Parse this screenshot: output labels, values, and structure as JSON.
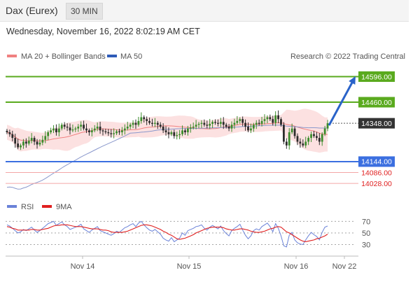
{
  "header": {
    "title": "Dax (Eurex)",
    "timeframe": "30 MIN"
  },
  "timestamp": "Wednesday, November 16, 2022 8:02:19 AM CET",
  "legend": {
    "ma20": "MA 20 + Bollinger Bands",
    "ma50": "MA 50",
    "credit": "Research © 2022 Trading Central"
  },
  "colors": {
    "resistance": "#5aaa1e",
    "support": "#3b6fe0",
    "secondary_support": "#e02020",
    "arrow": "#2a63c9",
    "candle_up": "#3c8c2c",
    "candle_down": "#2b2b2b",
    "bollinger_fill": "#fbd7d7",
    "ma20": "#f08080",
    "ma50": "#8a98cc",
    "rsi": "#6a82d8",
    "rsi_ma": "#e02020"
  },
  "chart_data": [
    {
      "type": "candlestick",
      "title": "Dax (Eurex)",
      "timeframe": "30 MIN",
      "x_ticks": [
        "Nov 14",
        "Nov 15",
        "Nov 16",
        "Nov 22"
      ],
      "ylim": [
        13980,
        14650
      ],
      "current_price": 14348.0,
      "levels": [
        {
          "value": 14596.0,
          "label": "14596.00",
          "kind": "target"
        },
        {
          "value": 14460.0,
          "label": "14460.00",
          "kind": "resistance"
        },
        {
          "value": 14348.0,
          "label": "14348.00",
          "kind": "current"
        },
        {
          "value": 14144.0,
          "label": "14144.00",
          "kind": "support"
        },
        {
          "value": 14086.0,
          "label": "14086.00",
          "kind": "support2"
        },
        {
          "value": 14028.0,
          "label": "14028.00",
          "kind": "support3"
        }
      ],
      "closes": [
        14300,
        14290,
        14270,
        14240,
        14220,
        14230,
        14250,
        14240,
        14255,
        14270,
        14250,
        14235,
        14245,
        14260,
        14280,
        14300,
        14310,
        14320,
        14300,
        14320,
        14340,
        14330,
        14325,
        14310,
        14315,
        14320,
        14330,
        14340,
        14320,
        14310,
        14300,
        14310,
        14320,
        14330,
        14310,
        14305,
        14300,
        14295,
        14290,
        14295,
        14305,
        14300,
        14310,
        14320,
        14330,
        14340,
        14350,
        14340,
        14360,
        14380,
        14370,
        14360,
        14350,
        14345,
        14350,
        14340,
        14330,
        14310,
        14300,
        14290,
        14300,
        14280,
        14285,
        14290,
        14310,
        14300,
        14320,
        14325,
        14330,
        14340,
        14345,
        14350,
        14340,
        14335,
        14345,
        14355,
        14350,
        14345,
        14355,
        14340,
        14330,
        14320,
        14340,
        14350,
        14360,
        14370,
        14350,
        14330,
        14310,
        14320,
        14340,
        14350,
        14345,
        14360,
        14370,
        14380,
        14370,
        14350,
        14390,
        14370,
        14340,
        14250,
        14230,
        14300,
        14320,
        14280,
        14250,
        14240,
        14230,
        14250,
        14270,
        14290,
        14280,
        14270,
        14250,
        14290,
        14320,
        14348
      ],
      "series": [
        {
          "name": "MA 20 + Bollinger Bands"
        },
        {
          "name": "MA 50"
        }
      ],
      "annotations": [
        "Research © 2022 Trading Central"
      ]
    },
    {
      "type": "line",
      "series": [
        {
          "name": "RSI",
          "values": [
            64,
            62,
            58,
            54,
            50,
            52,
            56,
            54,
            57,
            60,
            55,
            51,
            54,
            58,
            62,
            66,
            68,
            70,
            63,
            66,
            69,
            64,
            61,
            56,
            58,
            60,
            62,
            65,
            57,
            54,
            51,
            55,
            58,
            61,
            54,
            52,
            50,
            48,
            46,
            49,
            53,
            51,
            55,
            59,
            61,
            64,
            66,
            61,
            67,
            70,
            64,
            59,
            55,
            53,
            56,
            52,
            48,
            41,
            38,
            36,
            42,
            35,
            38,
            41,
            50,
            46,
            54,
            56,
            58,
            61,
            62,
            64,
            58,
            55,
            60,
            63,
            60,
            57,
            62,
            54,
            49,
            45,
            54,
            58,
            61,
            65,
            55,
            46,
            40,
            45,
            54,
            57,
            55,
            61,
            64,
            67,
            61,
            52,
            66,
            58,
            45,
            28,
            26,
            46,
            51,
            38,
            33,
            31,
            30,
            38,
            45,
            51,
            47,
            44,
            38,
            51,
            60,
            62
          ]
        },
        {
          "name": "9MA",
          "values": [
            61,
            60,
            58,
            57,
            55,
            55,
            55,
            55,
            55,
            56,
            56,
            55,
            55,
            56,
            57,
            58,
            60,
            62,
            63,
            63,
            64,
            64,
            64,
            63,
            62,
            61,
            61,
            61,
            60,
            59,
            58,
            57,
            57,
            57,
            56,
            55,
            55,
            54,
            52,
            51,
            51,
            51,
            51,
            52,
            53,
            55,
            57,
            59,
            61,
            63,
            64,
            64,
            63,
            62,
            60,
            58,
            56,
            53,
            51,
            48,
            46,
            43,
            40,
            39,
            40,
            41,
            43,
            45,
            47,
            50,
            52,
            54,
            56,
            58,
            59,
            60,
            60,
            60,
            60,
            59,
            57,
            56,
            55,
            55,
            56,
            57,
            57,
            56,
            55,
            53,
            52,
            51,
            51,
            52,
            53,
            55,
            57,
            58,
            60,
            61,
            60,
            56,
            52,
            50,
            47,
            44,
            41,
            38,
            36,
            35,
            36,
            37,
            38,
            40,
            41,
            43,
            45,
            48
          ]
        }
      ],
      "ylim": [
        15,
        80
      ],
      "y_ticks": [
        30,
        50,
        70
      ],
      "x_ticks": [
        "Nov 14",
        "Nov 15",
        "Nov 16",
        "Nov 22"
      ]
    }
  ]
}
